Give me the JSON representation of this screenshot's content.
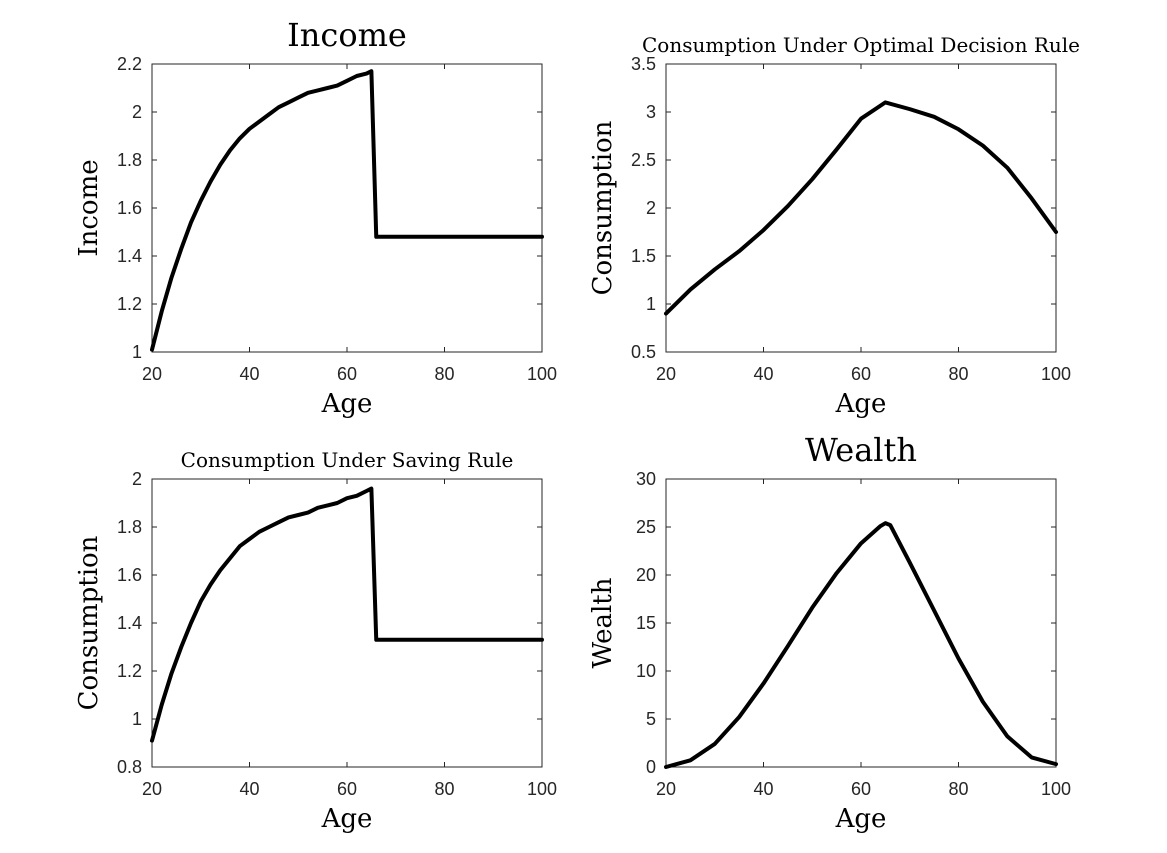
{
  "chart_data": [
    {
      "type": "line",
      "title": "Income",
      "xlabel": "Age",
      "ylabel": "Income",
      "xlim": [
        20,
        100
      ],
      "ylim": [
        1,
        2.2
      ],
      "xticks": [
        "20",
        "40",
        "60",
        "80",
        "100"
      ],
      "yticks": [
        "1",
        "1.2",
        "1.4",
        "1.6",
        "1.8",
        "2",
        "2.2"
      ],
      "grid": false,
      "series": [
        {
          "color": "#000000",
          "x": [
            20,
            22,
            24,
            26,
            28,
            30,
            32,
            34,
            36,
            38,
            40,
            42,
            44,
            46,
            48,
            50,
            52,
            54,
            56,
            58,
            60,
            62,
            64,
            65,
            66,
            70,
            80,
            90,
            100
          ],
          "y": [
            1.01,
            1.17,
            1.31,
            1.43,
            1.54,
            1.63,
            1.71,
            1.78,
            1.84,
            1.89,
            1.93,
            1.96,
            1.99,
            2.02,
            2.04,
            2.06,
            2.08,
            2.09,
            2.1,
            2.11,
            2.13,
            2.15,
            2.16,
            2.17,
            1.48,
            1.48,
            1.48,
            1.48,
            1.48
          ]
        }
      ]
    },
    {
      "type": "line",
      "title": "Consumption Under Optimal Decision Rule",
      "xlabel": "Age",
      "ylabel": "Consumption",
      "xlim": [
        20,
        100
      ],
      "ylim": [
        0.5,
        3.5
      ],
      "xticks": [
        "20",
        "40",
        "60",
        "80",
        "100"
      ],
      "yticks": [
        "0.5",
        "1",
        "1.5",
        "2",
        "2.5",
        "3",
        "3.5"
      ],
      "grid": false,
      "series": [
        {
          "color": "#000000",
          "x": [
            20,
            25,
            30,
            35,
            40,
            45,
            50,
            55,
            60,
            65,
            70,
            75,
            80,
            85,
            90,
            95,
            100
          ],
          "y": [
            0.9,
            1.15,
            1.36,
            1.55,
            1.77,
            2.02,
            2.3,
            2.61,
            2.93,
            3.1,
            3.03,
            2.95,
            2.82,
            2.65,
            2.42,
            2.1,
            1.75
          ]
        }
      ]
    },
    {
      "type": "line",
      "title": "Consumption Under Saving Rule",
      "xlabel": "Age",
      "ylabel": "Consumption",
      "xlim": [
        20,
        100
      ],
      "ylim": [
        0.8,
        2
      ],
      "xticks": [
        "20",
        "40",
        "60",
        "80",
        "100"
      ],
      "yticks": [
        "0.8",
        "1",
        "1.2",
        "1.4",
        "1.6",
        "1.8",
        "2"
      ],
      "grid": false,
      "series": [
        {
          "color": "#000000",
          "x": [
            20,
            22,
            24,
            26,
            28,
            30,
            32,
            34,
            36,
            38,
            40,
            42,
            44,
            46,
            48,
            50,
            52,
            54,
            56,
            58,
            60,
            62,
            64,
            65,
            66,
            70,
            80,
            90,
            100
          ],
          "y": [
            0.91,
            1.06,
            1.19,
            1.3,
            1.4,
            1.49,
            1.56,
            1.62,
            1.67,
            1.72,
            1.75,
            1.78,
            1.8,
            1.82,
            1.84,
            1.85,
            1.86,
            1.88,
            1.89,
            1.9,
            1.92,
            1.93,
            1.95,
            1.96,
            1.33,
            1.33,
            1.33,
            1.33,
            1.33
          ]
        }
      ]
    },
    {
      "type": "line",
      "title": "Wealth",
      "xlabel": "Age",
      "ylabel": "Wealth",
      "xlim": [
        20,
        100
      ],
      "ylim": [
        0,
        30
      ],
      "xticks": [
        "20",
        "40",
        "60",
        "80",
        "100"
      ],
      "yticks": [
        "0",
        "5",
        "10",
        "15",
        "20",
        "25",
        "30"
      ],
      "grid": false,
      "series": [
        {
          "color": "#000000",
          "x": [
            20,
            25,
            30,
            35,
            40,
            45,
            50,
            55,
            60,
            64,
            65,
            66,
            70,
            75,
            80,
            85,
            90,
            95,
            100
          ],
          "y": [
            0,
            0.7,
            2.4,
            5.2,
            8.7,
            12.6,
            16.6,
            20.2,
            23.3,
            25.1,
            25.4,
            25.2,
            21.3,
            16.3,
            11.3,
            6.8,
            3.2,
            1.0,
            0.3
          ]
        }
      ]
    }
  ]
}
